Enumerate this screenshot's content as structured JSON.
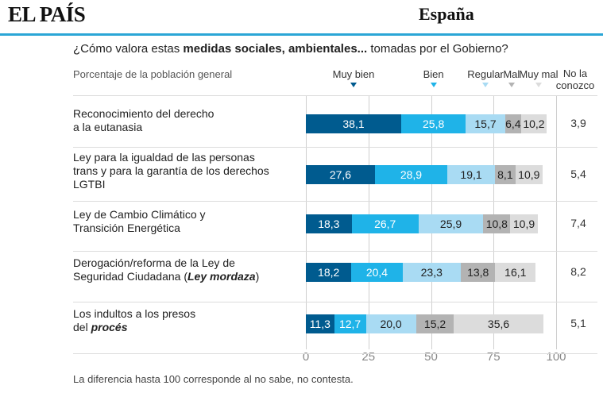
{
  "header": {
    "logo_text": "EL PAÍS",
    "section": "España",
    "accent": "#2aa6d6"
  },
  "chart_data": {
    "type": "bar",
    "orientation": "horizontal",
    "stacked": true,
    "question_plain": "¿Cómo valora estas ",
    "question_bold": "medidas sociales, ambientales...",
    "question_tail": " tomadas por el Gobierno?",
    "subtitle": "Porcentaje de la población general",
    "no_la_conozco_label": "No la conozco",
    "categories": [
      "Reconocimiento del derecho a la eutanasia",
      "Ley para la igualdad de las personas trans y para la garantía de los derechos LGTBI",
      "Ley de Cambio Climático y Transición Energética",
      "Derogación/reforma de la Ley de Seguridad Ciudadana (Ley mordaza)",
      "Los indultos a los presos del procés"
    ],
    "series": [
      {
        "name": "Muy bien",
        "color": "#005b8f",
        "text_color": "#ffffff",
        "values": [
          38.1,
          27.6,
          18.3,
          18.2,
          11.3
        ],
        "labels": [
          "38,1",
          "27,6",
          "18,3",
          "18,2",
          "11,3"
        ]
      },
      {
        "name": "Bien",
        "color": "#1fb3e8",
        "text_color": "#ffffff",
        "values": [
          25.8,
          28.9,
          26.7,
          20.4,
          12.7
        ],
        "labels": [
          "25,8",
          "28,9",
          "26,7",
          "20,4",
          "12,7"
        ]
      },
      {
        "name": "Regular",
        "color": "#a9dbf3",
        "text_color": "#222222",
        "values": [
          15.7,
          19.1,
          25.9,
          23.3,
          20.0
        ],
        "labels": [
          "15,7",
          "19,1",
          "25,9",
          "23,3",
          "20,0"
        ]
      },
      {
        "name": "Mal",
        "color": "#b3b3b3",
        "text_color": "#222222",
        "values": [
          6.4,
          8.1,
          10.8,
          13.8,
          15.2
        ],
        "labels": [
          "6,4",
          "8,1",
          "10,8",
          "13,8",
          "15,2"
        ]
      },
      {
        "name": "Muy mal",
        "color": "#dcdcdc",
        "text_color": "#222222",
        "values": [
          10.2,
          10.9,
          10.9,
          16.1,
          35.6
        ],
        "labels": [
          "10,2",
          "10,9",
          "10,9",
          "16,1",
          "35,6"
        ]
      }
    ],
    "no_la_conozco": [
      "3,9",
      "5,4",
      "7,4",
      "8,2",
      "5,1"
    ],
    "xlim": [
      0,
      100
    ],
    "xticks": [
      "0",
      "25",
      "50",
      "75",
      "100"
    ],
    "grid": true,
    "legend_position": "top",
    "footnote": "La diferencia hasta 100 corresponde al no sabe, no contesta."
  }
}
